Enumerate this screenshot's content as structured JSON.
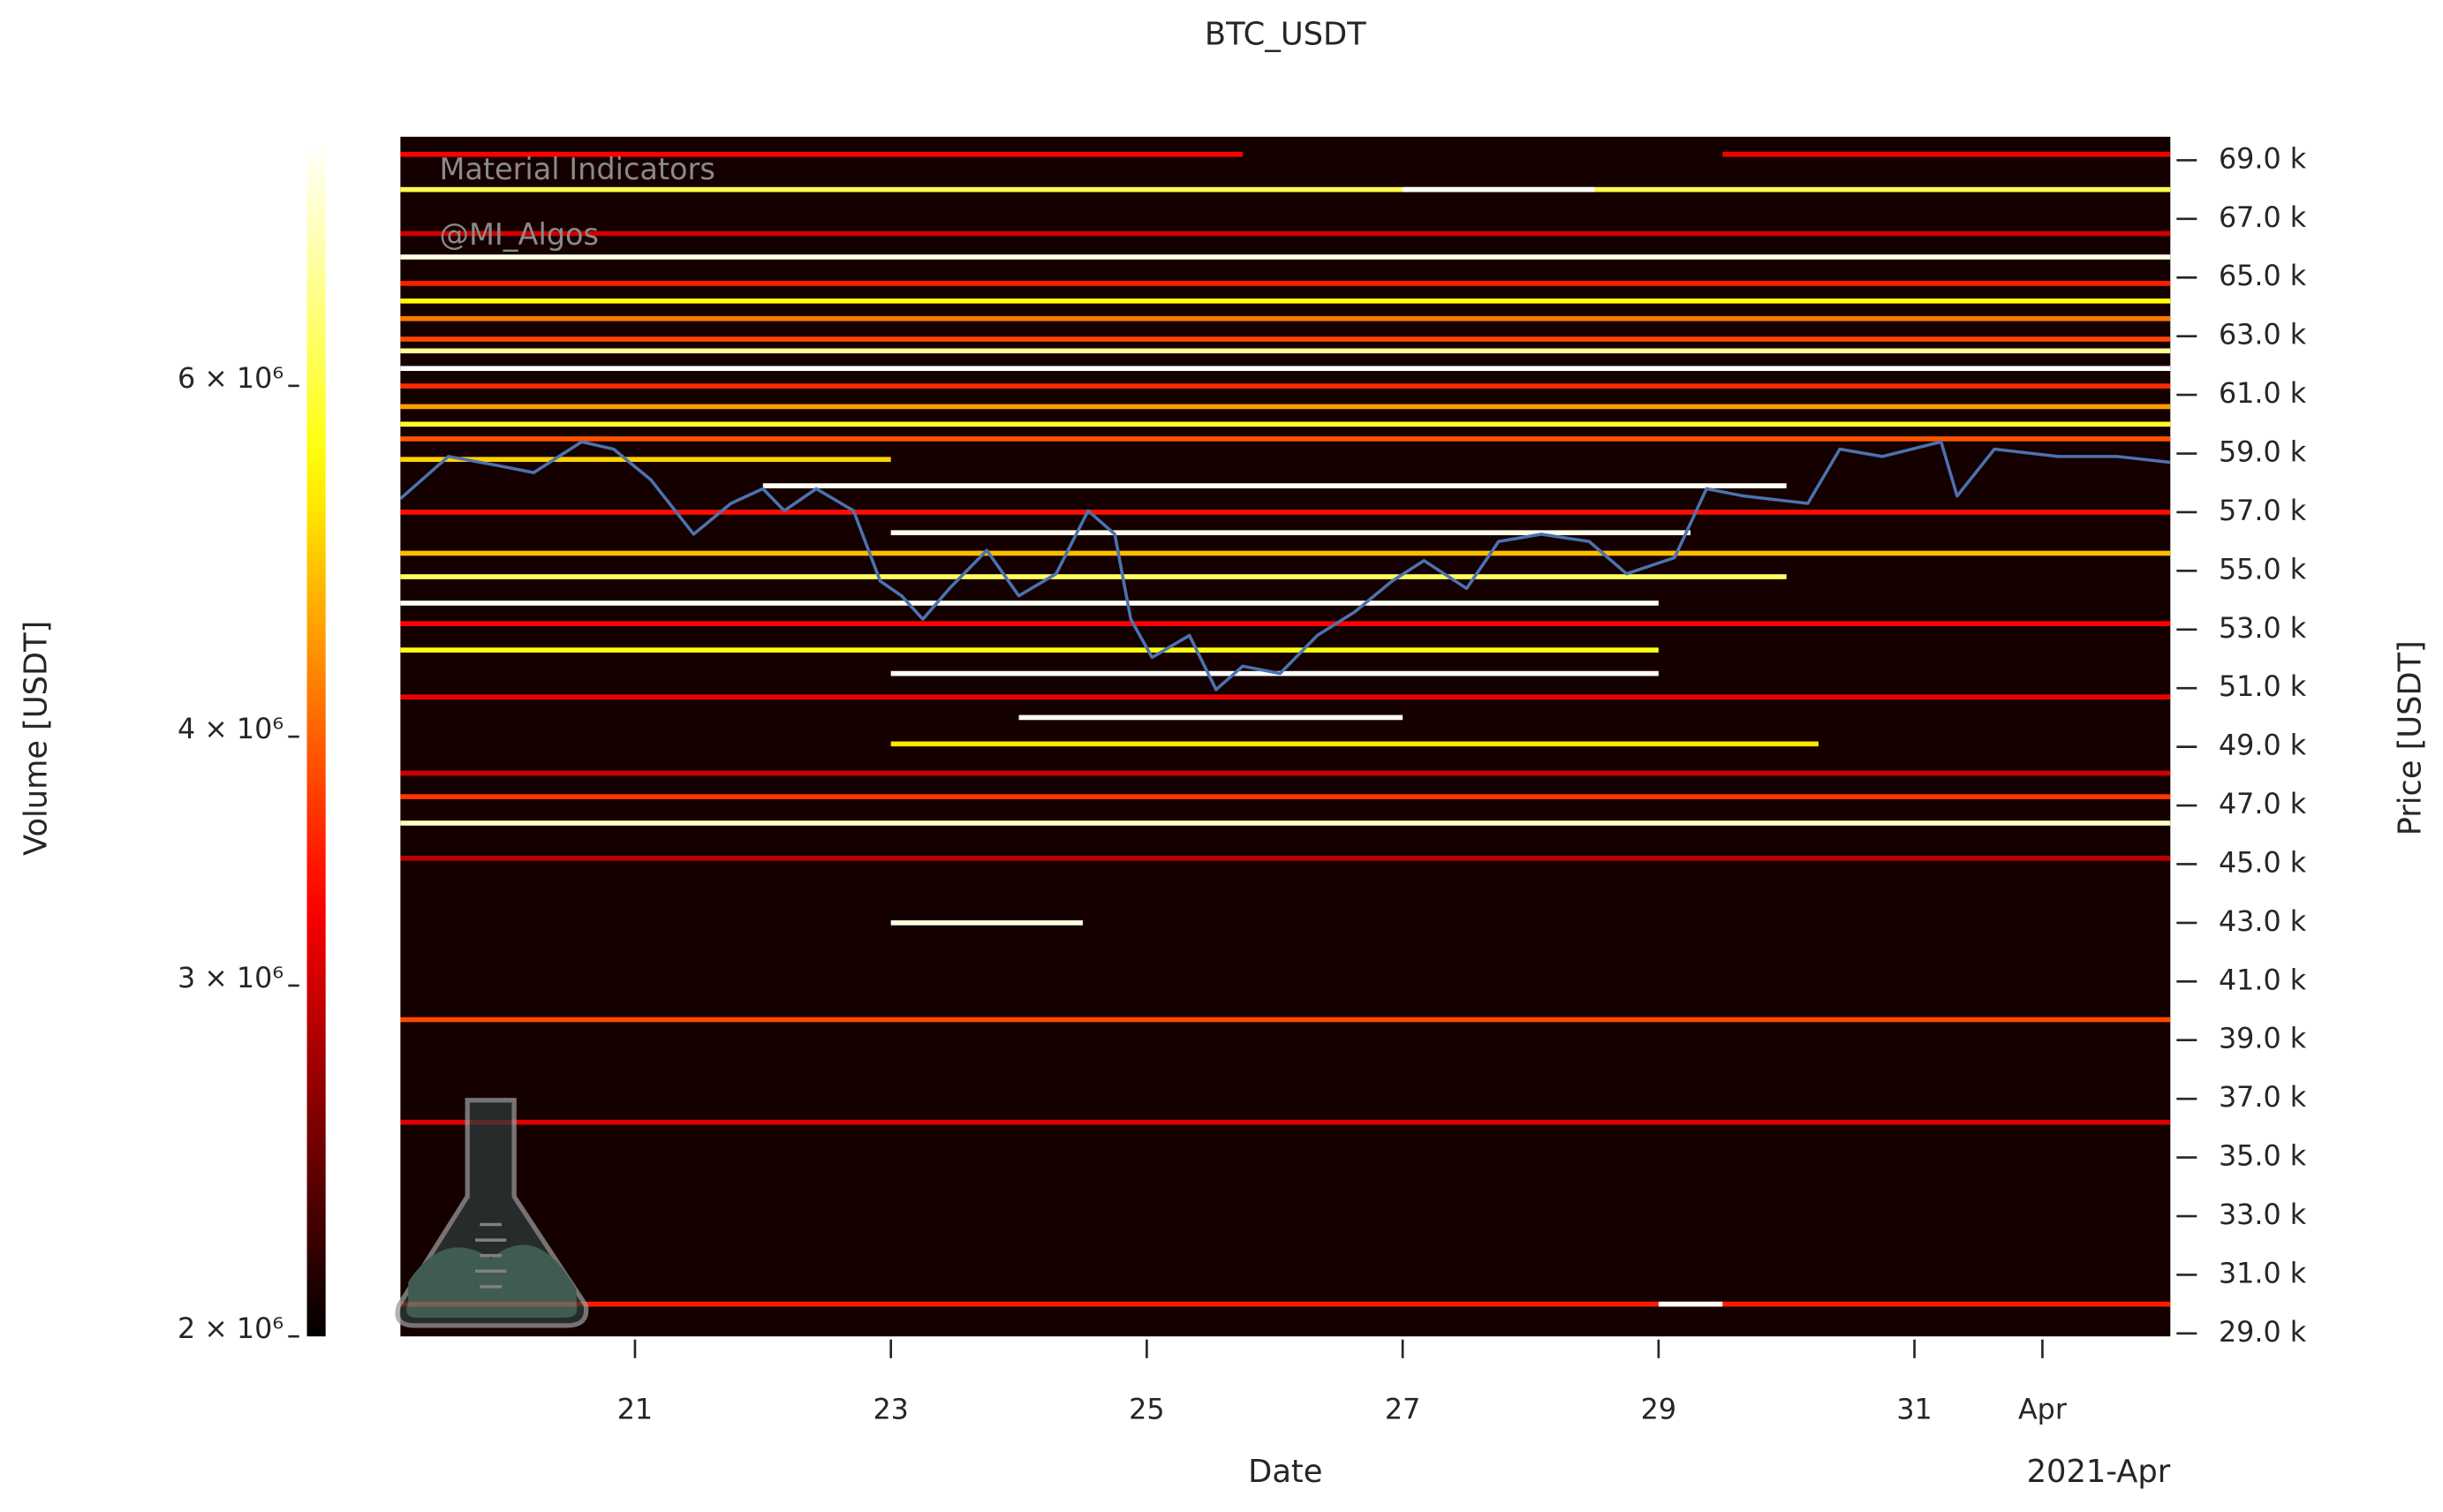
{
  "chart_data": {
    "type": "heatmap",
    "title": "BTC_USDT",
    "watermark": [
      "Material Indicators",
      "@MI_Algos"
    ],
    "x_label": "Date",
    "x_offset_label": "2021-Apr",
    "y_label": "Price [USDT]",
    "colorbar_label": "Volume [USDT]",
    "colormap": "hot",
    "color_scale": "log",
    "xlim": [
      "2021-03-19T04:00",
      "2021-04-02T00:00"
    ],
    "xticks": [
      {
        "value": "2021-03-21",
        "label": "21"
      },
      {
        "value": "2021-03-23",
        "label": "23"
      },
      {
        "value": "2021-03-25",
        "label": "25"
      },
      {
        "value": "2021-03-27",
        "label": "27"
      },
      {
        "value": "2021-03-29",
        "label": "29"
      },
      {
        "value": "2021-03-31",
        "label": "31"
      },
      {
        "value": "2021-04-01",
        "label": "Apr"
      }
    ],
    "ylim": [
      28900,
      69800
    ],
    "yticks": [
      {
        "value": 29000,
        "label": "29.0 k"
      },
      {
        "value": 31000,
        "label": "31.0 k"
      },
      {
        "value": 33000,
        "label": "33.0 k"
      },
      {
        "value": 35000,
        "label": "35.0 k"
      },
      {
        "value": 37000,
        "label": "37.0 k"
      },
      {
        "value": 39000,
        "label": "39.0 k"
      },
      {
        "value": 41000,
        "label": "41.0 k"
      },
      {
        "value": 43000,
        "label": "43.0 k"
      },
      {
        "value": 45000,
        "label": "45.0 k"
      },
      {
        "value": 47000,
        "label": "47.0 k"
      },
      {
        "value": 49000,
        "label": "49.0 k"
      },
      {
        "value": 51000,
        "label": "51.0 k"
      },
      {
        "value": 53000,
        "label": "53.0 k"
      },
      {
        "value": 55000,
        "label": "55.0 k"
      },
      {
        "value": 57000,
        "label": "57.0 k"
      },
      {
        "value": 59000,
        "label": "59.0 k"
      },
      {
        "value": 61000,
        "label": "61.0 k"
      },
      {
        "value": 63000,
        "label": "63.0 k"
      },
      {
        "value": 65000,
        "label": "65.0 k"
      },
      {
        "value": 67000,
        "label": "67.0 k"
      },
      {
        "value": 69000,
        "label": "69.0 k"
      }
    ],
    "clim": [
      2000000,
      7930000
    ],
    "cticks": [
      {
        "value": 2000000,
        "label": "2 × 10⁶"
      },
      {
        "value": 3000000,
        "label": "3 × 10⁶"
      },
      {
        "value": 4000000,
        "label": "4 × 10⁶"
      },
      {
        "value": 6000000,
        "label": "6 × 10⁶"
      }
    ],
    "bands": [
      {
        "price": 69200,
        "start": "2021-03-19T04:00",
        "end": "2021-03-25T18:00",
        "volume": 3300000
      },
      {
        "price": 69200,
        "start": "2021-03-29T12:00",
        "end": "2021-04-02T00:00",
        "volume": 3200000
      },
      {
        "price": 68000,
        "start": "2021-03-19T04:00",
        "end": "2021-04-02T00:00",
        "volume": 6100000
      },
      {
        "price": 68000,
        "start": "2021-03-27T00:00",
        "end": "2021-03-28T12:00",
        "volume": 7900000
      },
      {
        "price": 66500,
        "start": "2021-03-19T04:00",
        "end": "2021-04-02T00:00",
        "volume": 3000000
      },
      {
        "price": 65700,
        "start": "2021-03-19T04:00",
        "end": "2021-04-02T00:00",
        "volume": 7600000
      },
      {
        "price": 64800,
        "start": "2021-03-19T04:00",
        "end": "2021-04-02T00:00",
        "volume": 3500000
      },
      {
        "price": 64200,
        "start": "2021-03-19T04:00",
        "end": "2021-04-02T00:00",
        "volume": 5500000
      },
      {
        "price": 63600,
        "start": "2021-03-19T04:00",
        "end": "2021-04-02T00:00",
        "volume": 4200000
      },
      {
        "price": 62900,
        "start": "2021-03-19T04:00",
        "end": "2021-04-02T00:00",
        "volume": 3800000
      },
      {
        "price": 62500,
        "start": "2021-03-19T04:00",
        "end": "2021-04-02T00:00",
        "volume": 6800000
      },
      {
        "price": 61900,
        "start": "2021-03-19T04:00",
        "end": "2021-04-02T00:00",
        "volume": 7900000
      },
      {
        "price": 61300,
        "start": "2021-03-19T04:00",
        "end": "2021-04-02T00:00",
        "volume": 3600000
      },
      {
        "price": 60600,
        "start": "2021-03-19T04:00",
        "end": "2021-04-02T00:00",
        "volume": 4500000
      },
      {
        "price": 60000,
        "start": "2021-03-19T04:00",
        "end": "2021-04-02T00:00",
        "volume": 5800000
      },
      {
        "price": 59500,
        "start": "2021-03-19T04:00",
        "end": "2021-04-02T00:00",
        "volume": 3900000
      },
      {
        "price": 58800,
        "start": "2021-03-19T04:00",
        "end": "2021-03-23T00:00",
        "volume": 5000000
      },
      {
        "price": 57900,
        "start": "2021-03-22T00:00",
        "end": "2021-03-30T00:00",
        "volume": 7800000
      },
      {
        "price": 57000,
        "start": "2021-03-19T04:00",
        "end": "2021-04-02T00:00",
        "volume": 3400000
      },
      {
        "price": 56300,
        "start": "2021-03-23T00:00",
        "end": "2021-03-29T06:00",
        "volume": 7700000
      },
      {
        "price": 55600,
        "start": "2021-03-19T04:00",
        "end": "2021-04-02T00:00",
        "volume": 4800000
      },
      {
        "price": 54800,
        "start": "2021-03-19T04:00",
        "end": "2021-03-30T00:00",
        "volume": 6300000
      },
      {
        "price": 53900,
        "start": "2021-03-19T04:00",
        "end": "2021-03-29T00:00",
        "volume": 7800000
      },
      {
        "price": 53200,
        "start": "2021-03-19T04:00",
        "end": "2021-04-02T00:00",
        "volume": 3300000
      },
      {
        "price": 52300,
        "start": "2021-03-19T04:00",
        "end": "2021-03-29T00:00",
        "volume": 5600000
      },
      {
        "price": 51500,
        "start": "2021-03-23T00:00",
        "end": "2021-03-29T00:00",
        "volume": 7900000
      },
      {
        "price": 50700,
        "start": "2021-03-19T04:00",
        "end": "2021-04-02T00:00",
        "volume": 3200000
      },
      {
        "price": 50000,
        "start": "2021-03-24T00:00",
        "end": "2021-03-27T00:00",
        "volume": 7800000
      },
      {
        "price": 49100,
        "start": "2021-03-23T00:00",
        "end": "2021-03-30T06:00",
        "volume": 5200000
      },
      {
        "price": 48100,
        "start": "2021-03-19T04:00",
        "end": "2021-04-02T00:00",
        "volume": 3000000
      },
      {
        "price": 47300,
        "start": "2021-03-19T04:00",
        "end": "2021-04-02T00:00",
        "volume": 3700000
      },
      {
        "price": 46400,
        "start": "2021-03-19T04:00",
        "end": "2021-04-02T00:00",
        "volume": 7200000
      },
      {
        "price": 45200,
        "start": "2021-03-19T04:00",
        "end": "2021-04-02T00:00",
        "volume": 2900000
      },
      {
        "price": 43000,
        "start": "2021-03-23T00:00",
        "end": "2021-03-24T12:00",
        "volume": 7600000
      },
      {
        "price": 39700,
        "start": "2021-03-19T04:00",
        "end": "2021-04-02T00:00",
        "volume": 3800000
      },
      {
        "price": 36200,
        "start": "2021-03-19T04:00",
        "end": "2021-04-02T00:00",
        "volume": 3100000
      },
      {
        "price": 30000,
        "start": "2021-03-19T04:00",
        "end": "2021-04-02T00:00",
        "volume": 3500000
      },
      {
        "price": 30000,
        "start": "2021-03-29T00:00",
        "end": "2021-03-29T12:00",
        "volume": 7900000
      }
    ],
    "price_line": {
      "color": "#4c72b0",
      "x": [
        "2021-03-19T04:00",
        "2021-03-19T13:00",
        "2021-03-19T22:00",
        "2021-03-20T05:00",
        "2021-03-20T14:00",
        "2021-03-20T20:00",
        "2021-03-21T03:00",
        "2021-03-21T11:00",
        "2021-03-21T18:00",
        "2021-03-22T00:00",
        "2021-03-22T04:00",
        "2021-03-22T10:00",
        "2021-03-22T17:00",
        "2021-03-22T22:00",
        "2021-03-23T02:00",
        "2021-03-23T06:00",
        "2021-03-23T11:00",
        "2021-03-23T18:00",
        "2021-03-24T00:00",
        "2021-03-24T07:00",
        "2021-03-24T13:00",
        "2021-03-24T18:00",
        "2021-03-24T21:00",
        "2021-03-25T01:00",
        "2021-03-25T08:00",
        "2021-03-25T13:00",
        "2021-03-25T18:00",
        "2021-03-26T01:00",
        "2021-03-26T08:00",
        "2021-03-26T15:00",
        "2021-03-26T22:00",
        "2021-03-27T04:00",
        "2021-03-27T12:00",
        "2021-03-27T18:00",
        "2021-03-28T02:00",
        "2021-03-28T11:00",
        "2021-03-28T18:00",
        "2021-03-29T03:00",
        "2021-03-29T09:00",
        "2021-03-29T16:00",
        "2021-03-30T04:00",
        "2021-03-30T10:00",
        "2021-03-30T18:00",
        "2021-03-31T05:00",
        "2021-03-31T08:00",
        "2021-03-31T15:00",
        "2021-04-01T03:00",
        "2021-04-01T14:00",
        "2021-04-02T00:00"
      ],
      "values": [
        57460,
        58900,
        58600,
        58350,
        59400,
        59150,
        58100,
        56250,
        57300,
        57800,
        57050,
        57800,
        57050,
        54650,
        54150,
        53350,
        54400,
        55700,
        54150,
        54900,
        57050,
        56250,
        53350,
        52050,
        52800,
        50950,
        51750,
        51500,
        52800,
        53600,
        54650,
        55350,
        54400,
        56000,
        56250,
        56000,
        54900,
        55450,
        57800,
        57550,
        57300,
        59150,
        58900,
        59400,
        57550,
        59150,
        58900,
        58900,
        58700
      ]
    }
  }
}
